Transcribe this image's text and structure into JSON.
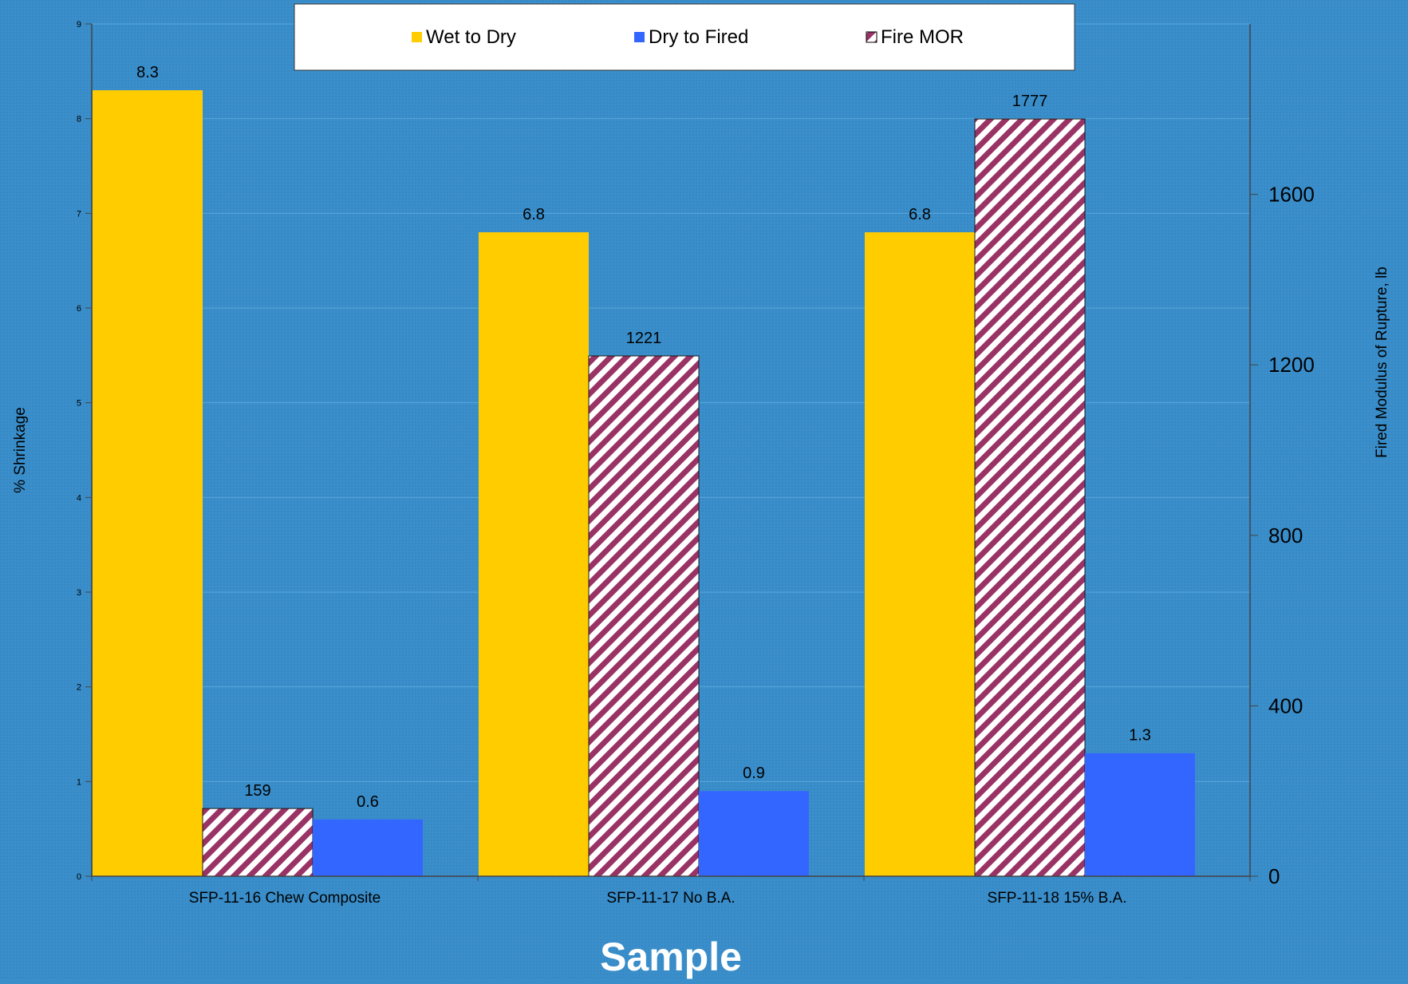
{
  "chart_data": {
    "type": "bar",
    "categories": [
      "SFP-11-16 Chew Composite",
      "SFP-11-17 No B.A.",
      "SFP-11-18 15% B.A."
    ],
    "series": [
      {
        "name": "Wet to Dry",
        "axis": "left",
        "values": [
          8.3,
          6.8,
          6.8
        ],
        "labels": [
          "8.3",
          "6.8",
          "6.8"
        ],
        "color": "#ffcc00",
        "pattern": "solid"
      },
      {
        "name": "Fire MOR",
        "axis": "right",
        "values": [
          159,
          1221,
          1777
        ],
        "labels": [
          "159",
          "1221",
          "1777"
        ],
        "color": "#993366",
        "pattern": "diagonal-hatch"
      },
      {
        "name": "Dry to Fired",
        "axis": "left",
        "values": [
          0.6,
          0.9,
          1.3
        ],
        "labels": [
          "0.6",
          "0.9",
          "1.3"
        ],
        "color": "#3366ff",
        "pattern": "solid"
      }
    ],
    "legend": {
      "placement": "top",
      "items": [
        {
          "name": "Wet to Dry",
          "color": "#ffcc00",
          "pattern": "solid"
        },
        {
          "name": "Dry to Fired",
          "color": "#3366ff",
          "pattern": "solid"
        },
        {
          "name": "Fire MOR",
          "color": "#993366",
          "pattern": "diagonal-hatch"
        }
      ]
    },
    "xlabel": "Sample",
    "ylabel": "% Shrinkage",
    "ylim": [
      0,
      9
    ],
    "yticks": [
      "0",
      "1",
      "2",
      "3",
      "4",
      "5",
      "6",
      "7",
      "8",
      "9"
    ],
    "y2label": "Fired Modulus of Rupture, lb",
    "y2lim": [
      0,
      2000
    ],
    "y2ticks": [
      "0",
      "400",
      "800",
      "1200",
      "1600"
    ],
    "grid": true,
    "background_color": "#3a8fcb"
  }
}
